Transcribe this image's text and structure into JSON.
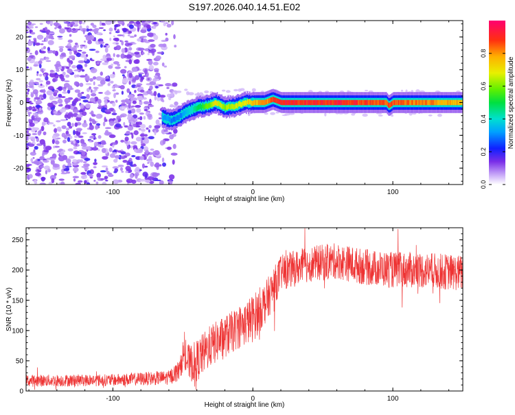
{
  "title": "S197.2026.040.14.51.E02",
  "colors": {
    "axes": "#000000",
    "snr_line": "#ee3333",
    "spectrogram_noise": "#8a3cf0",
    "spectrogram_noise_light": "#d8c4f8",
    "spectrogram_signal_core": "#ee2222"
  },
  "chart_data": [
    {
      "type": "heatmap",
      "title": "S197.2026.040.14.51.E02",
      "xlabel": "Height of straight line (km)",
      "ylabel": "Frequency (Hz)",
      "xlim": [
        -162,
        150
      ],
      "ylim": [
        -25,
        25
      ],
      "xticks": [
        -100,
        0,
        100
      ],
      "yticks": [
        -20,
        -10,
        0,
        10,
        20
      ],
      "colorbar": {
        "label": "Normalized spectral amplitude",
        "range": [
          0.0,
          1.0
        ],
        "ticks": [
          0.0,
          0.2,
          0.4,
          0.6,
          0.8
        ]
      },
      "ridge": {
        "description_points": [
          {
            "x": -65,
            "y": -4.5,
            "v": 0.35
          },
          {
            "x": -58,
            "y": -5.5,
            "v": 0.3
          },
          {
            "x": -52,
            "y": -4,
            "v": 0.3
          },
          {
            "x": -46,
            "y": -2.5,
            "v": 0.4
          },
          {
            "x": -40,
            "y": -1.5,
            "v": 0.5
          },
          {
            "x": -33,
            "y": -1,
            "v": 0.6
          },
          {
            "x": -27,
            "y": 0,
            "v": 0.75
          },
          {
            "x": -20,
            "y": -1.5,
            "v": 0.65
          },
          {
            "x": -12,
            "y": -1,
            "v": 0.7
          },
          {
            "x": -6,
            "y": 0,
            "v": 0.75
          },
          {
            "x": 0,
            "y": 0,
            "v": 0.8
          },
          {
            "x": 8,
            "y": 0,
            "v": 0.85
          },
          {
            "x": 14,
            "y": 1,
            "v": 0.9
          },
          {
            "x": 20,
            "y": 0,
            "v": 0.95
          },
          {
            "x": 60,
            "y": 0,
            "v": 0.95
          },
          {
            "x": 95,
            "y": 0,
            "v": 0.9
          },
          {
            "x": 97,
            "y": -1,
            "v": 0.9
          },
          {
            "x": 100,
            "y": 0,
            "v": 0.9
          },
          {
            "x": 150,
            "y": 0,
            "v": 0.8
          }
        ]
      },
      "noise_region_x": [
        -162,
        -60
      ]
    },
    {
      "type": "line",
      "xlabel": "Height of straight line (km)",
      "ylabel": "SNR (10 * v/v)",
      "xlim": [
        -162,
        150
      ],
      "ylim": [
        0,
        270
      ],
      "xticks": [
        -100,
        0,
        100
      ],
      "yticks": [
        0,
        50,
        100,
        150,
        200,
        250
      ],
      "series": [
        {
          "name": "SNR",
          "trend_x": [
            -162,
            -100,
            -60,
            -52,
            -50,
            -48,
            -45,
            -40,
            -30,
            -20,
            -10,
            0,
            10,
            20,
            40,
            60,
            80,
            100,
            120,
            150
          ],
          "trend_y": [
            17,
            18,
            22,
            35,
            60,
            55,
            45,
            50,
            75,
            90,
            105,
            120,
            150,
            195,
            210,
            215,
            205,
            200,
            200,
            195
          ],
          "noise_amplitude": [
            10,
            10,
            12,
            18,
            25,
            30,
            30,
            35,
            35,
            35,
            35,
            40,
            35,
            30,
            30,
            30,
            30,
            30,
            30,
            30
          ]
        }
      ]
    }
  ]
}
